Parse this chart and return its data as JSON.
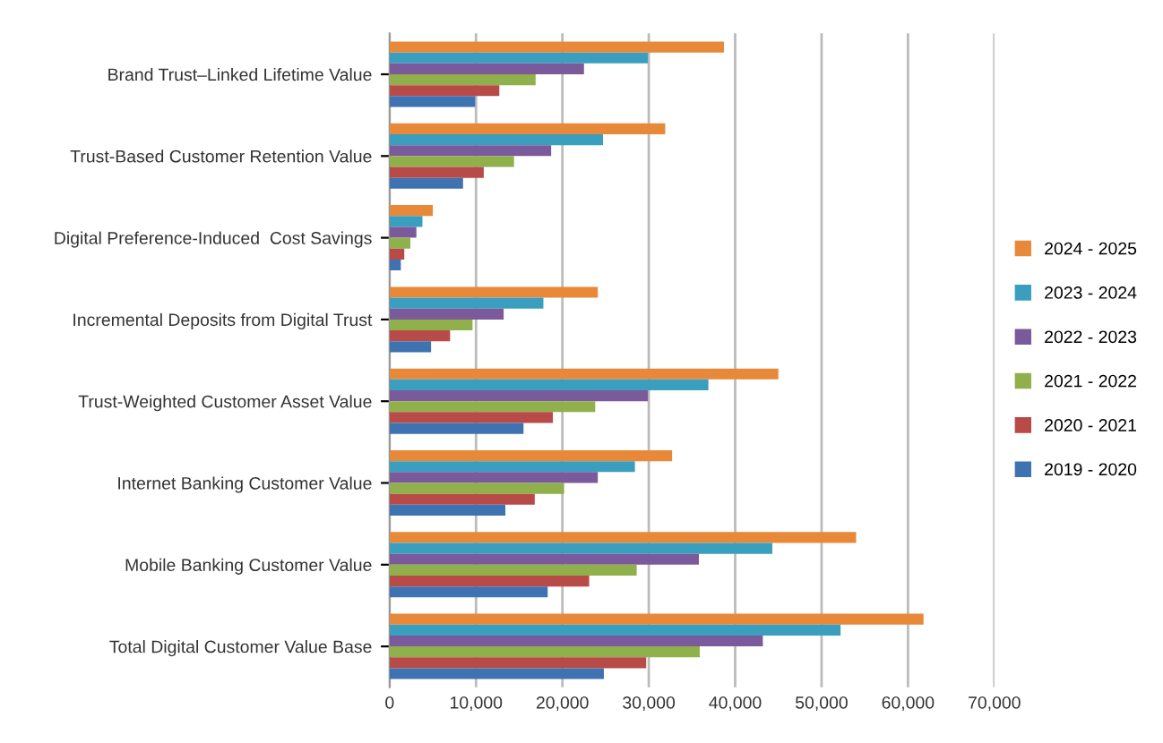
{
  "chart_data": {
    "type": "bar",
    "orientation": "horizontal",
    "categories": [
      "Brand Trust–Linked Lifetime Value",
      "Trust-Based Customer Retention Value",
      "Digital Preference-Induced  Cost Savings",
      "Incremental Deposits from Digital Trust",
      "Trust-Weighted Customer Asset Value",
      "Internet Banking Customer Value",
      "Mobile Banking Customer Value",
      "Total Digital Customer Value Base"
    ],
    "series": [
      {
        "name": "2024 - 2025",
        "color": "#e8893a",
        "values": [
          38700,
          31900,
          5000,
          24100,
          45000,
          32700,
          54000,
          61800
        ]
      },
      {
        "name": "2023 - 2024",
        "color": "#3a9fbf",
        "values": [
          29900,
          24700,
          3800,
          17800,
          36900,
          28400,
          44300,
          52200
        ]
      },
      {
        "name": "2022 - 2023",
        "color": "#7a5a9a",
        "values": [
          22500,
          18700,
          3100,
          13200,
          29900,
          24100,
          35800,
          43200
        ]
      },
      {
        "name": "2021 - 2022",
        "color": "#8fb04a",
        "values": [
          16900,
          14400,
          2400,
          9600,
          23800,
          20200,
          28600,
          35900
        ]
      },
      {
        "name": "2020 - 2021",
        "color": "#b84a48",
        "values": [
          12700,
          10900,
          1700,
          7000,
          18900,
          16800,
          23100,
          29700
        ]
      },
      {
        "name": "2019 - 2020",
        "color": "#3f72b0",
        "values": [
          9900,
          8500,
          1300,
          4800,
          15500,
          13400,
          18300,
          24800
        ]
      }
    ],
    "xlim": [
      0,
      70000
    ],
    "xticks": [
      0,
      {
        "value": 10000,
        "label": "10,000"
      },
      {
        "value": 20000,
        "label": "20,000"
      },
      {
        "value": 30000,
        "label": "30,000"
      },
      {
        "value": 40000,
        "label": "40,000"
      },
      {
        "value": 50000,
        "label": "50,000"
      },
      {
        "value": 60000,
        "label": "60,000"
      },
      {
        "value": 70000,
        "label": "70,000"
      }
    ],
    "grid": "x",
    "legend": "right"
  }
}
